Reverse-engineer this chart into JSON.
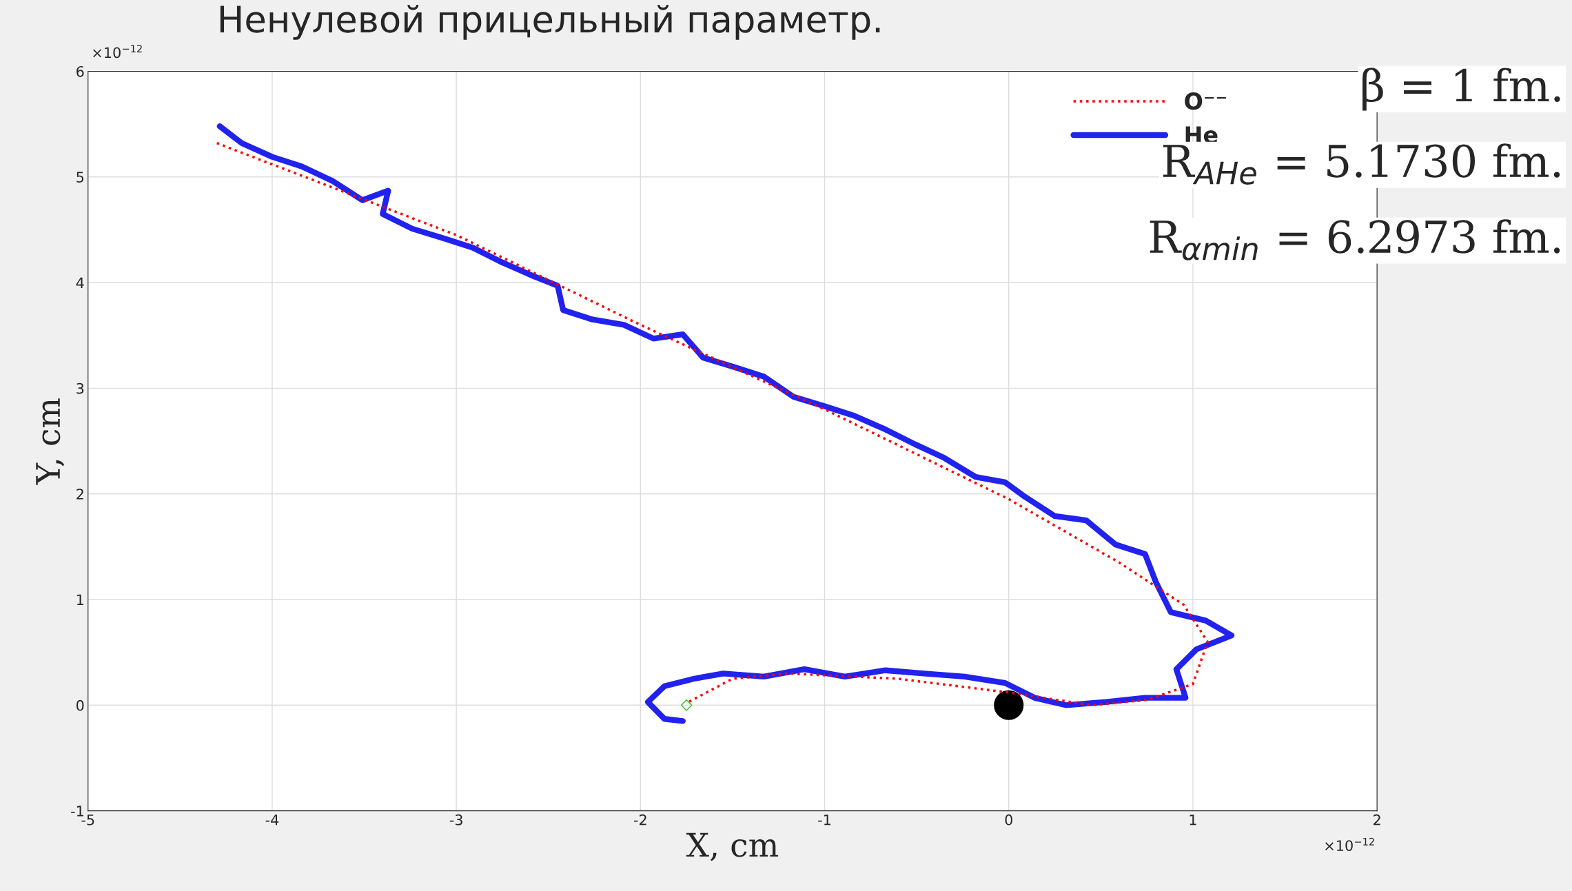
{
  "chart_data": {
    "type": "line",
    "title": "Ненулевой прицельный параметр.",
    "xlabel": "X, cm",
    "ylabel": "Y, cm",
    "xlim": [
      -5,
      2
    ],
    "ylim": [
      -1,
      6
    ],
    "xticks": [
      -5,
      -4,
      -3,
      -2,
      -1,
      0,
      1,
      2
    ],
    "yticks": [
      -1,
      0,
      1,
      2,
      3,
      4,
      5,
      6
    ],
    "grid": true,
    "legend": "top right",
    "annotations": [
      "×10$^{−12}$",
      "×10$^{−12}$",
      "β = 1 fm.",
      "R$_{AHe}$ = 5.1730 fm.",
      "R$_{αmin}$ = 6.2973 fm."
    ],
    "series": [
      {
        "name": "O⁻⁻",
        "line_style": "dotted",
        "color": "#ff0000",
        "x": [
          -4.3,
          -3,
          -2,
          -1,
          0,
          0.6,
          0.95,
          1.08,
          1.0,
          0.75,
          0.45,
          0,
          -0.6,
          -1.2,
          -1.5,
          -1.75
        ],
        "values": [
          5.32,
          4.45,
          3.6,
          2.8,
          1.95,
          1.35,
          0.95,
          0.6,
          0.2,
          0.05,
          0.0,
          0.12,
          0.25,
          0.3,
          0.25,
          0.02
        ]
      },
      {
        "name": "He",
        "line_style": "solid",
        "color": "#2222ee",
        "x": [
          -4.285,
          -4.165,
          -4.0,
          -3.84,
          -3.67,
          -3.51,
          -3.37,
          -3.4,
          -3.24,
          -3.07,
          -2.91,
          -2.75,
          -2.58,
          -2.45,
          -2.42,
          -2.26,
          -2.09,
          -1.93,
          -1.77,
          -1.66,
          -1.49,
          -1.33,
          -1.17,
          -1.0,
          -0.84,
          -0.67,
          -0.51,
          -0.35,
          -0.18,
          -0.02,
          0.09,
          0.25,
          0.42,
          0.58,
          0.74,
          0.8,
          0.88,
          1.07,
          1.21,
          1.02,
          0.91,
          0.96,
          0.74,
          0.53,
          0.31,
          0.14,
          -0.02,
          -0.24,
          -0.46,
          -0.67,
          -0.89,
          -1.11,
          -1.33,
          -1.55,
          -1.71,
          -1.87,
          -1.96,
          -1.87,
          -1.77
        ],
        "values": [
          5.48,
          5.32,
          5.19,
          5.1,
          4.96,
          4.78,
          4.87,
          4.65,
          4.51,
          4.42,
          4.33,
          4.19,
          4.06,
          3.97,
          3.74,
          3.65,
          3.6,
          3.47,
          3.51,
          3.29,
          3.2,
          3.11,
          2.92,
          2.83,
          2.74,
          2.61,
          2.47,
          2.34,
          2.16,
          2.11,
          1.97,
          1.79,
          1.75,
          1.52,
          1.43,
          1.16,
          0.88,
          0.8,
          0.66,
          0.53,
          0.34,
          0.07,
          0.07,
          0.03,
          0.0,
          0.07,
          0.21,
          0.27,
          0.3,
          0.33,
          0.27,
          0.34,
          0.27,
          0.3,
          0.25,
          0.18,
          0.03,
          -0.13,
          -0.15
        ]
      },
      {
        "type": "scatter",
        "marker": "circle",
        "color": "#000000",
        "x": [
          0
        ],
        "values": [
          0
        ]
      },
      {
        "type": "scatter",
        "marker": "diamond",
        "color": "#22cc22",
        "x": [
          -1.75
        ],
        "values": [
          0
        ]
      }
    ]
  }
}
